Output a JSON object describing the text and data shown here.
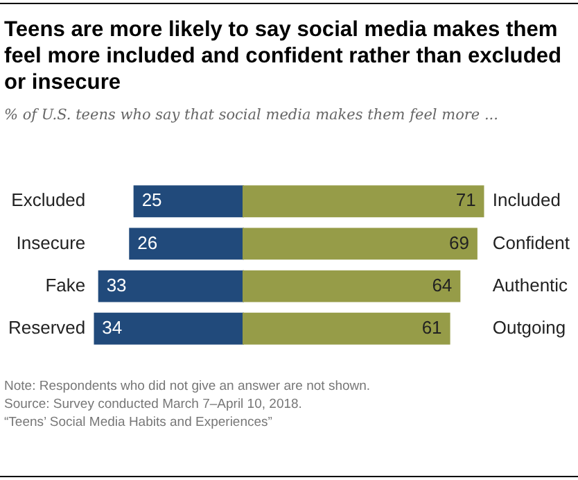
{
  "chart_data": [
    {
      "type": "bar",
      "orientation": "horizontal",
      "title": "Teens are more likely to say social media makes them feel more included and confident rather than excluded or insecure",
      "subtitle": "% of U.S. teens who say that social media makes them feel more ...",
      "categories": [
        "Excluded",
        "Insecure",
        "Fake",
        "Reserved"
      ],
      "series": [
        {
          "color": "#214a7b",
          "values": [
            25,
            26,
            33,
            34
          ]
        }
      ],
      "xlim": [
        34,
        0
      ],
      "data_labels": true,
      "tick_labels": "y",
      "legend": false,
      "annotations": [
        "Note: Respondents who did not give an answer are not shown.",
        "Source: Survey conducted March 7–April 10, 2018.",
        "“Teens’ Social Media Habits and Experiences”"
      ]
    },
    {
      "type": "bar",
      "orientation": "horizontal",
      "categories": [
        "Included",
        "Confident",
        "Authentic",
        "Outgoing"
      ],
      "series": [
        {
          "color": "#969c48",
          "values": [
            71,
            69,
            64,
            61
          ]
        }
      ],
      "xlim": [
        0,
        71
      ],
      "data_labels": true,
      "tick_labels": "y",
      "legend": false
    }
  ]
}
